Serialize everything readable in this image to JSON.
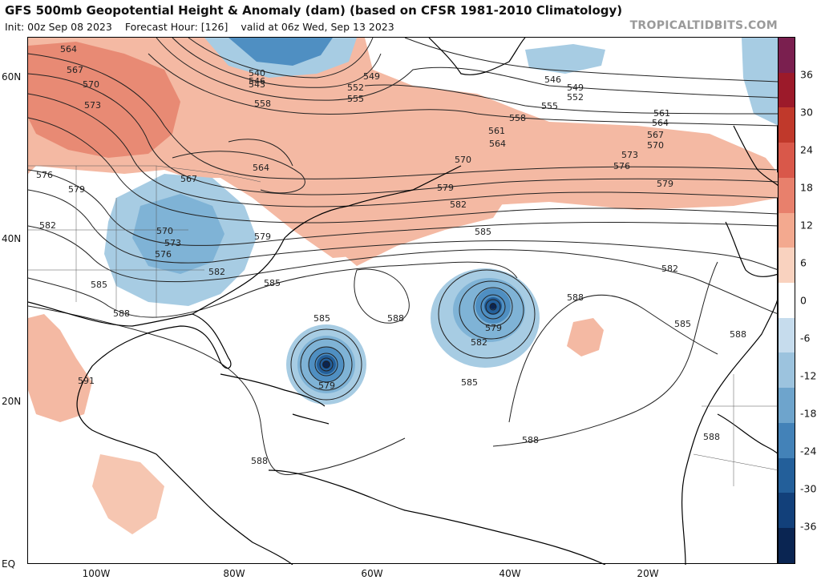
{
  "header": {
    "title": "GFS 500mb Geopotential Height & Anomaly (dam) (based on CFSR 1981-2010 Climatology)",
    "init": "Init: 00z Sep 08 2023",
    "forecast_hour": "Forecast Hour: [126]",
    "valid": "valid at 06z Wed, Sep 13 2023",
    "credit": "TROPICALTIDBITS.COM"
  },
  "axes": {
    "lat_labels": [
      "60N",
      "40N",
      "20N",
      "EQ"
    ],
    "lon_labels": [
      "100W",
      "80W",
      "60W",
      "40W",
      "20W"
    ]
  },
  "colorbar": {
    "ticks": [
      "36",
      "30",
      "24",
      "18",
      "12",
      "6",
      "0",
      "-6",
      "-12",
      "-18",
      "-24",
      "-30",
      "-36"
    ],
    "colors": [
      "#7a1f4f",
      "#9c1a2a",
      "#c0392b",
      "#d9584a",
      "#e8806c",
      "#f3a98f",
      "#f9d2bf",
      "#ffffff",
      "#c6dced",
      "#9cc3de",
      "#6ea4cc",
      "#4382b8",
      "#235f9a",
      "#12407a",
      "#0a2552"
    ]
  },
  "contours": {
    "labels": [
      "564",
      "567",
      "570",
      "573",
      "576",
      "579",
      "582",
      "585",
      "588",
      "591",
      "540",
      "543",
      "546",
      "549",
      "552",
      "555",
      "558",
      "561"
    ]
  },
  "colors": {
    "positive": "#f4b9a3",
    "positive_strong": "#e88a74",
    "negative": "#a7cce3",
    "negative_strong": "#6ea4cc",
    "land": "#000000"
  }
}
